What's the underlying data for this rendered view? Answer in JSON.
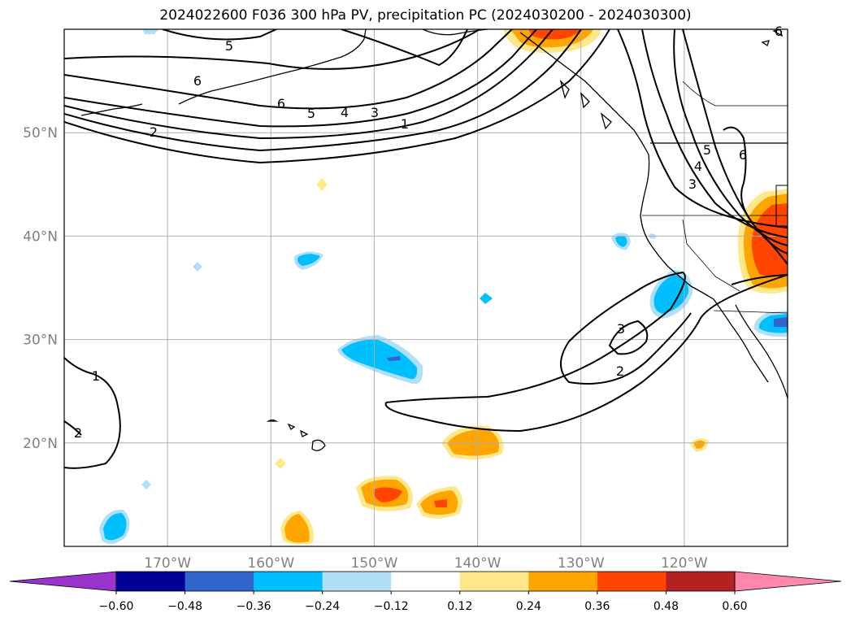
{
  "title": "2024022600 F036 300 hPa PV, precipitation PC (2024030200 - 2024030300)",
  "map": {
    "lon_range": [
      -180,
      -110
    ],
    "lat_range": [
      10,
      60
    ],
    "grid": true,
    "lat_ticks": [
      {
        "lat": 50,
        "label": "50°N"
      },
      {
        "lat": 40,
        "label": "40°N"
      },
      {
        "lat": 30,
        "label": "30°N"
      },
      {
        "lat": 20,
        "label": "20°N"
      }
    ],
    "lon_ticks": [
      {
        "lon": -170,
        "label": "170°W"
      },
      {
        "lon": -160,
        "label": "160°W"
      },
      {
        "lon": -150,
        "label": "150°W"
      },
      {
        "lon": -140,
        "label": "140°W"
      },
      {
        "lon": -130,
        "label": "130°W"
      },
      {
        "lon": -120,
        "label": "120°W"
      }
    ],
    "pv_contour_labels": [
      "1",
      "2",
      "3",
      "4",
      "5",
      "6"
    ]
  },
  "colorbar": {
    "ticks": [
      "−0.60",
      "−0.48",
      "−0.36",
      "−0.24",
      "−0.12",
      "0.12",
      "0.24",
      "0.36",
      "0.48",
      "0.60"
    ],
    "colors": [
      "#9933cc",
      "#000099",
      "#3366cc",
      "#00bfff",
      "#b0e0f8",
      "#ffffff",
      "#ffe88a",
      "#ffa500",
      "#ff4500",
      "#b22222",
      "#ff88aa",
      "#ff88aa"
    ],
    "extend": "both"
  }
}
